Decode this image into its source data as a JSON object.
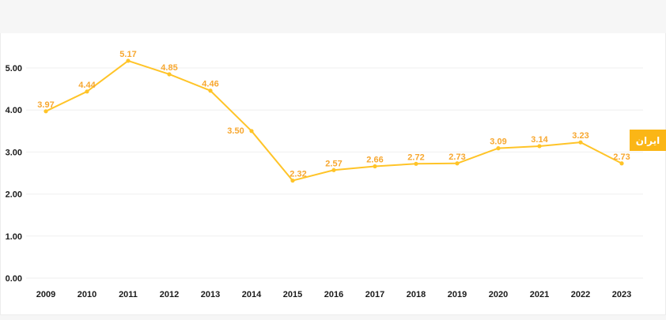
{
  "chart": {
    "series_label": "ايران",
    "colors": {
      "line": "#FFC428",
      "marker": "#FFC428",
      "data_label": "#F7A72F",
      "badge_bg": "#FBB616",
      "badge_text": "#FFFFFF",
      "axis_text": "#1A1A1A",
      "gridline": "#EFEFEF",
      "card_bg": "#FFFFFF",
      "page_bg": "#F6F6F6"
    }
  },
  "chart_data": {
    "type": "line",
    "title": "",
    "xlabel": "",
    "ylabel": "",
    "categories": [
      "2009",
      "2010",
      "2011",
      "2012",
      "2013",
      "2014",
      "2015",
      "2016",
      "2017",
      "2018",
      "2019",
      "2020",
      "2021",
      "2022",
      "2023"
    ],
    "series": [
      {
        "name": "ايران",
        "values": [
          3.97,
          4.44,
          5.17,
          4.85,
          4.46,
          3.5,
          2.32,
          2.57,
          2.66,
          2.72,
          2.73,
          3.09,
          3.14,
          3.23,
          2.73
        ]
      }
    ],
    "data_labels": [
      "3.97",
      "4.44",
      "5.17",
      "4.85",
      "4.46",
      "3.50",
      "2.32",
      "2.57",
      "2.66",
      "2.72",
      "2.73",
      "3.09",
      "3.14",
      "3.23",
      "2.73"
    ],
    "ylim": [
      0,
      5
    ],
    "ytick_labels": [
      "0.00",
      "1.00",
      "2.00",
      "3.00",
      "4.00",
      "5.00"
    ],
    "grid": true,
    "legend_position": "right-edge-badge"
  }
}
